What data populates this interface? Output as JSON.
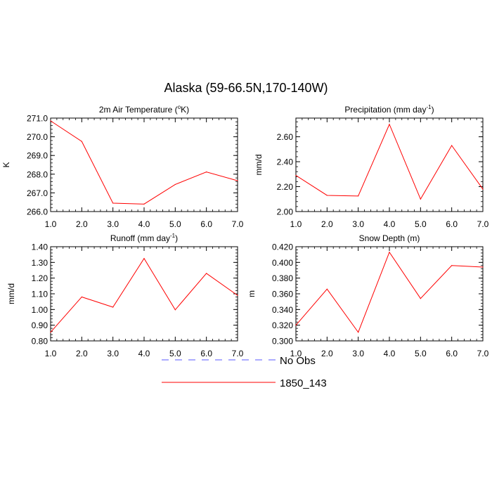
{
  "figure": {
    "title": "Alaska (59-66.5N,170-140W)"
  },
  "chart_data": [
    {
      "type": "line",
      "title": "2m Air Temperature (°K)",
      "title_base": "2m Air Temperature (",
      "title_sup": "o",
      "title_end": "K)",
      "ylabel": "K",
      "x": [
        1,
        2,
        3,
        4,
        5,
        6,
        7
      ],
      "xlim": [
        1,
        7
      ],
      "xticks": [
        "1.0",
        "2.0",
        "3.0",
        "4.0",
        "5.0",
        "6.0",
        "7.0"
      ],
      "ylim": [
        266.0,
        271.0
      ],
      "yticks": [
        266.0,
        267.0,
        268.0,
        269.0,
        270.0,
        271.0
      ],
      "ytick_labels": [
        "266.0",
        "267.0",
        "268.0",
        "269.0",
        "270.0",
        "271.0"
      ],
      "series": [
        {
          "name": "1850_143",
          "color": "#ff0000",
          "values": [
            270.85,
            269.75,
            266.45,
            266.4,
            267.45,
            268.12,
            267.65
          ]
        }
      ]
    },
    {
      "type": "line",
      "title": "Precipitation (mm day-1)",
      "title_base": "Precipitation (mm day",
      "title_sup": "-1",
      "title_end": ")",
      "ylabel": "mm/d",
      "x": [
        1,
        2,
        3,
        4,
        5,
        6,
        7
      ],
      "xlim": [
        1,
        7
      ],
      "xticks": [
        "1.0",
        "2.0",
        "3.0",
        "4.0",
        "5.0",
        "6.0",
        "7.0"
      ],
      "ylim": [
        2.0,
        2.75
      ],
      "yticks": [
        2.0,
        2.2,
        2.4,
        2.6
      ],
      "ytick_labels": [
        "2.00",
        "2.20",
        "2.40",
        "2.60"
      ],
      "series": [
        {
          "name": "1850_143",
          "color": "#ff0000",
          "values": [
            2.29,
            2.13,
            2.125,
            2.7,
            2.1,
            2.53,
            2.18
          ]
        }
      ]
    },
    {
      "type": "line",
      "title": "Runoff (mm day-1)",
      "title_base": "Runoff (mm day",
      "title_sup": "-1",
      "title_end": ")",
      "ylabel": "mm/d",
      "x": [
        1,
        2,
        3,
        4,
        5,
        6,
        7
      ],
      "xlim": [
        1,
        7
      ],
      "xticks": [
        "1.0",
        "2.0",
        "3.0",
        "4.0",
        "5.0",
        "6.0",
        "7.0"
      ],
      "ylim": [
        0.8,
        1.4
      ],
      "yticks": [
        0.8,
        0.9,
        1.0,
        1.1,
        1.2,
        1.3,
        1.4
      ],
      "ytick_labels": [
        "0.80",
        "0.90",
        "1.00",
        "1.10",
        "1.20",
        "1.30",
        "1.40"
      ],
      "series": [
        {
          "name": "1850_143",
          "color": "#ff0000",
          "values": [
            0.855,
            1.08,
            1.015,
            1.325,
            0.998,
            1.23,
            1.09
          ]
        }
      ]
    },
    {
      "type": "line",
      "title": "Snow Depth (m)",
      "title_base": "Snow Depth (m)",
      "title_sup": "",
      "title_end": "",
      "ylabel": "m",
      "x": [
        1,
        2,
        3,
        4,
        5,
        6,
        7
      ],
      "xlim": [
        1,
        7
      ],
      "xticks": [
        "1.0",
        "2.0",
        "3.0",
        "4.0",
        "5.0",
        "6.0",
        "7.0"
      ],
      "ylim": [
        0.3,
        0.42
      ],
      "yticks": [
        0.3,
        0.32,
        0.34,
        0.36,
        0.38,
        0.4,
        0.42
      ],
      "ytick_labels": [
        "0.300",
        "0.320",
        "0.340",
        "0.360",
        "0.380",
        "0.400",
        "0.420"
      ],
      "series": [
        {
          "name": "1850_143",
          "color": "#ff0000",
          "values": [
            0.32,
            0.366,
            0.311,
            0.413,
            0.354,
            0.396,
            0.394
          ]
        }
      ]
    }
  ],
  "legend": {
    "placement": "bottom-center",
    "entries": [
      {
        "label": "No Obs",
        "color": "#5a5aff",
        "style": "dashed"
      },
      {
        "label": "1850_143",
        "color": "#ff0000",
        "style": "solid"
      }
    ]
  }
}
